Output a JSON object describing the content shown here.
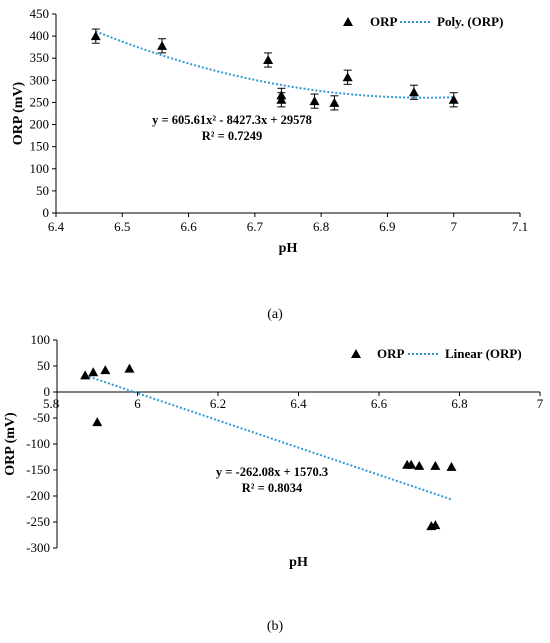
{
  "colors": {
    "marker": "#000000",
    "trendline": "#2e9bd6",
    "axis": "#000000",
    "grid": "#bfbfbf"
  },
  "chart_data": [
    {
      "type": "scatter",
      "panel_label": "(a)",
      "xlabel": "pH",
      "ylabel": "ORP (mV)",
      "xlim": [
        6.4,
        7.1
      ],
      "ylim": [
        0,
        450
      ],
      "xticks": [
        "6.4",
        "6.5",
        "6.6",
        "6.7",
        "6.8",
        "6.9",
        "7",
        "7.1"
      ],
      "yticks": [
        "0",
        "50",
        "100",
        "150",
        "200",
        "250",
        "300",
        "350",
        "400",
        "450"
      ],
      "grid": false,
      "error_bars": true,
      "legend_position": "top-right",
      "series": [
        {
          "name": "ORP",
          "marker": "triangle",
          "points": [
            {
              "x": 6.46,
              "y": 400,
              "err": 16
            },
            {
              "x": 6.56,
              "y": 378,
              "err": 16
            },
            {
              "x": 6.72,
              "y": 346,
              "err": 16
            },
            {
              "x": 6.74,
              "y": 266,
              "err": 16
            },
            {
              "x": 6.74,
              "y": 256,
              "err": 16
            },
            {
              "x": 6.79,
              "y": 253,
              "err": 16
            },
            {
              "x": 6.82,
              "y": 249,
              "err": 16
            },
            {
              "x": 6.84,
              "y": 307,
              "err": 16
            },
            {
              "x": 6.94,
              "y": 273,
              "err": 16
            },
            {
              "x": 7.0,
              "y": 256,
              "err": 16
            }
          ]
        }
      ],
      "trendline": {
        "name": "Poly. (ORP)",
        "kind": "poly2",
        "coefficients": [
          605.61,
          -8427.3,
          29578
        ],
        "x_range": [
          6.46,
          7.0
        ]
      },
      "annotation": {
        "equation": "y = 605.61x² - 8427.3x + 29578",
        "r2": "R² = 0.7249"
      }
    },
    {
      "type": "scatter",
      "panel_label": "(b)",
      "xlabel": "pH",
      "ylabel": "ORP (mV)",
      "xlim": [
        5.8,
        7
      ],
      "ylim": [
        -300,
        100
      ],
      "xticks": [
        "5.8",
        "6",
        "6.2",
        "6.4",
        "6.6",
        "6.8",
        "7"
      ],
      "yticks": [
        "100",
        "50",
        "0",
        "-50",
        "-100",
        "-150",
        "-200",
        "-250",
        "-300"
      ],
      "grid": false,
      "error_bars": false,
      "legend_position": "top-right",
      "series": [
        {
          "name": "ORP",
          "marker": "triangle",
          "points": [
            {
              "x": 5.87,
              "y": 32
            },
            {
              "x": 5.89,
              "y": 38
            },
            {
              "x": 5.92,
              "y": 42
            },
            {
              "x": 5.98,
              "y": 45
            },
            {
              "x": 5.9,
              "y": -58
            },
            {
              "x": 6.67,
              "y": -140
            },
            {
              "x": 6.68,
              "y": -140
            },
            {
              "x": 6.7,
              "y": -142
            },
            {
              "x": 6.74,
              "y": -142
            },
            {
              "x": 6.78,
              "y": -144
            },
            {
              "x": 6.73,
              "y": -258
            },
            {
              "x": 6.74,
              "y": -256
            }
          ]
        }
      ],
      "trendline": {
        "name": "Linear (ORP)",
        "kind": "linear",
        "coefficients": [
          -262.08,
          1570.3
        ],
        "x_range": [
          5.87,
          6.78
        ]
      },
      "annotation": {
        "equation": "y = -262.08x + 1570.3",
        "r2": "R² = 0.8034"
      }
    }
  ]
}
